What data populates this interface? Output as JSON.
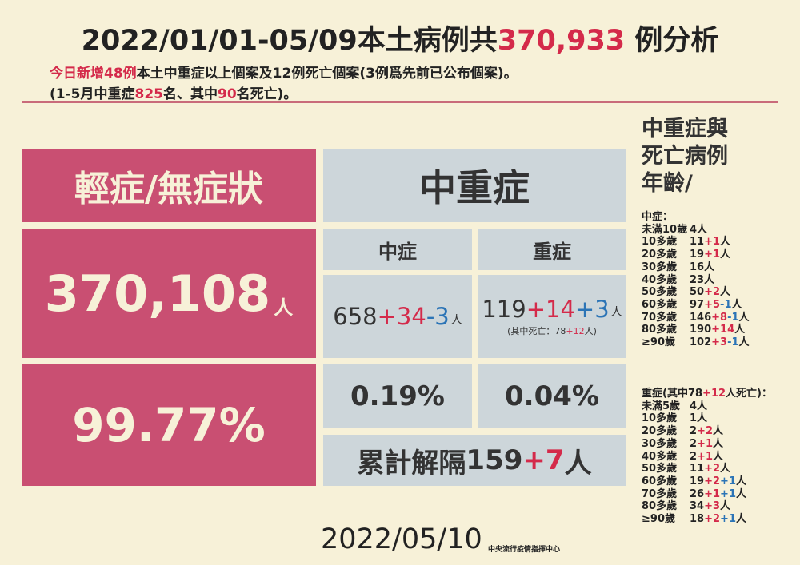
{
  "header": {
    "title_a": "2022/01/01-05/09本土病例共",
    "title_total": "370,933",
    "title_b": " 例分析",
    "sub1_a": "今日新增48例",
    "sub1_b": "本土中重症以上個案及12例死亡個案(3例爲先前已公布個案)。",
    "sub2_a": "(1-5月中重症",
    "sub2_b": "825",
    "sub2_c": "名、其中",
    "sub2_d": "90",
    "sub2_e": "名死亡)。"
  },
  "mild": {
    "heading": "輕症/無症狀",
    "count": "370,108",
    "unit": "人",
    "percent": "99.77%"
  },
  "severe_group": {
    "heading": "中重症",
    "moderate": {
      "label": "中症",
      "base": "658",
      "add": "+34",
      "sub": "-3",
      "unit": "人",
      "percent": "0.19%"
    },
    "severe": {
      "label": "重症",
      "base": "119",
      "add": "+14",
      "add2": "+3",
      "unit": "人",
      "death_a": "(其中死亡：78",
      "death_b": "+12",
      "death_c": "人)",
      "percent": "0.04%"
    },
    "released_label": "累計解隔 ",
    "released_base": "159",
    "released_add": "+7",
    "released_unit": "人"
  },
  "age": {
    "title_lines": [
      "中重症與",
      "死亡病例",
      "年齡/"
    ],
    "moderate_heading": "中症：",
    "moderate_rows": [
      {
        "label": "未滿10歲",
        "base": "4人",
        "add": "",
        "sub": "",
        "tail": ""
      },
      {
        "label": "10多歲",
        "base": "11",
        "add": "+1",
        "sub": "",
        "tail": "人"
      },
      {
        "label": "20多歲",
        "base": "19",
        "add": "+1",
        "sub": "",
        "tail": "人"
      },
      {
        "label": "30多歲",
        "base": "16人",
        "add": "",
        "sub": "",
        "tail": ""
      },
      {
        "label": "40多歲",
        "base": "23人",
        "add": "",
        "sub": "",
        "tail": ""
      },
      {
        "label": "50多歲",
        "base": "50",
        "add": "+2",
        "sub": "",
        "tail": "人"
      },
      {
        "label": "60多歲",
        "base": "97",
        "add": "+5",
        "sub": "-1",
        "tail": "人"
      },
      {
        "label": "70多歲",
        "base": "146",
        "add": "+8",
        "sub": "-1",
        "tail": "人"
      },
      {
        "label": "80多歲",
        "base": "190",
        "add": "+14",
        "sub": "",
        "tail": "人"
      },
      {
        "label": "≥90歲",
        "base": "102",
        "add": "+3",
        "sub": "-1",
        "tail": "人"
      }
    ],
    "severe_heading_a": "重症(其中78",
    "severe_heading_b": "+12",
    "severe_heading_c": "人死亡)：",
    "severe_rows": [
      {
        "label": "未滿5歲",
        "base": "4人",
        "add": "",
        "add2": "",
        "tail": ""
      },
      {
        "label": "10多歲",
        "base": "1人",
        "add": "",
        "add2": "",
        "tail": ""
      },
      {
        "label": "20多歲",
        "base": "2",
        "add": "+2",
        "add2": "",
        "tail": "人"
      },
      {
        "label": "30多歲",
        "base": "2",
        "add": "+1",
        "add2": "",
        "tail": "人"
      },
      {
        "label": "40多歲",
        "base": "2",
        "add": "+1",
        "add2": "",
        "tail": "人"
      },
      {
        "label": "50多歲",
        "base": "11",
        "add": "+2",
        "add2": "",
        "tail": "人"
      },
      {
        "label": "60多歲",
        "base": "19",
        "add": "+2",
        "add2": "+1",
        "tail": "人"
      },
      {
        "label": "70多歲",
        "base": "26",
        "add": "+1",
        "add2": "+1",
        "tail": "人"
      },
      {
        "label": "80多歲",
        "base": "34",
        "add": "+3",
        "add2": "",
        "tail": "人"
      },
      {
        "label": "≥90歲",
        "base": "18",
        "add": "+2",
        "add2": "+1",
        "tail": "人"
      }
    ]
  },
  "footer": {
    "date": "2022/05/10",
    "org": "中央流行疫情指揮中心"
  }
}
